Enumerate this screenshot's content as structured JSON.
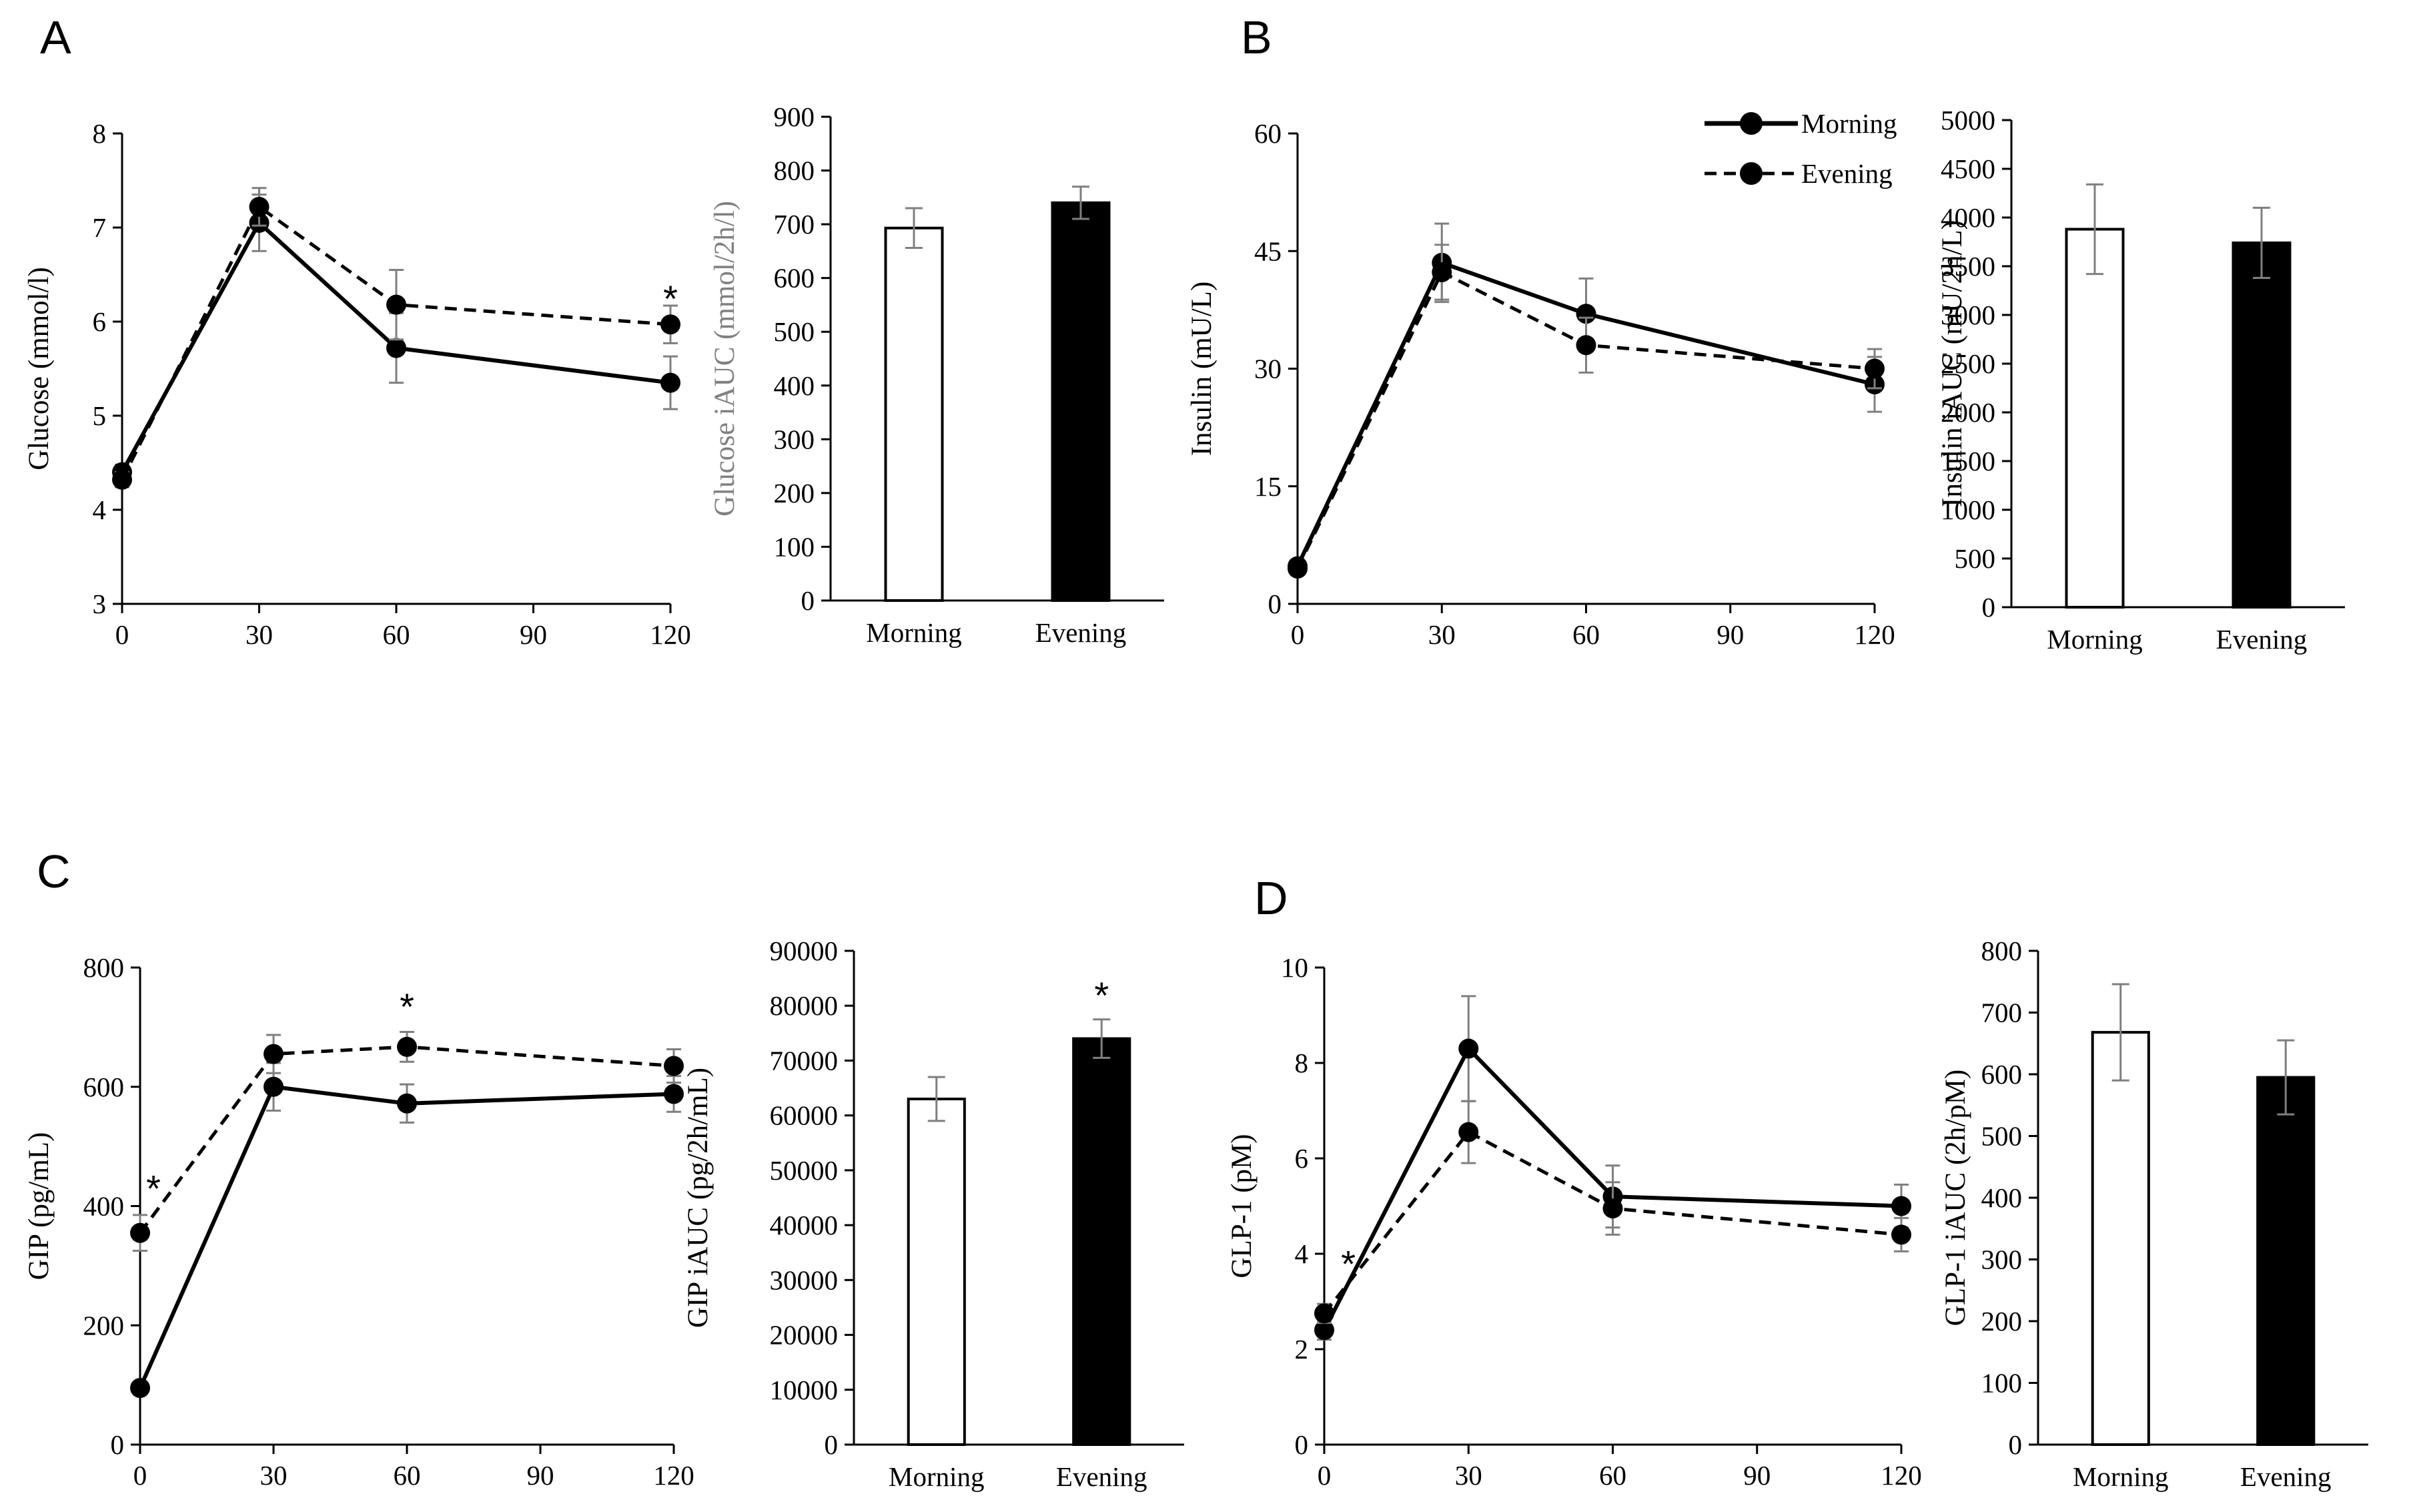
{
  "figure": {
    "panel_labels": [
      "A",
      "B",
      "C",
      "D"
    ],
    "legend": {
      "morning_label": "Morning",
      "evening_label": "Evening"
    }
  },
  "chart_data": [
    {
      "id": "glucose-line",
      "panel": "A",
      "type": "line",
      "ylabel": "Glucose (mmol/l)",
      "xlabel": "",
      "x": [
        0,
        30,
        60,
        90,
        120
      ],
      "xticks": [
        0,
        30,
        60,
        90,
        120
      ],
      "ylim": [
        3,
        8
      ],
      "yticks": [
        3,
        4,
        5,
        6,
        7,
        8
      ],
      "series": [
        {
          "name": "Morning",
          "style": "solid",
          "x": [
            0,
            30,
            60,
            120
          ],
          "values": [
            4.4,
            7.05,
            5.72,
            5.35
          ],
          "errors": [
            0.08,
            0.3,
            0.37,
            0.28
          ]
        },
        {
          "name": "Evening",
          "style": "dashed",
          "x": [
            0,
            30,
            60,
            120
          ],
          "values": [
            4.32,
            7.22,
            6.18,
            5.97
          ],
          "errors": [
            0.08,
            0.2,
            0.37,
            0.2
          ]
        }
      ],
      "annotations": [
        {
          "x": 120,
          "y": 6.25,
          "text": "*"
        }
      ]
    },
    {
      "id": "glucose-bar",
      "panel": "A",
      "type": "bar",
      "ylabel": "Glucose iAUC (mmol/2h/l)",
      "categories": [
        "Morning",
        "Evening"
      ],
      "values": [
        693,
        740
      ],
      "errors": [
        37,
        30
      ],
      "fills": [
        "#ffffff",
        "#000000"
      ],
      "ylim": [
        0,
        900
      ],
      "yticks": [
        0,
        100,
        200,
        300,
        400,
        500,
        600,
        700,
        800,
        900
      ],
      "annotations": []
    },
    {
      "id": "insulin-line",
      "panel": "B",
      "type": "line",
      "ylabel": "Insulin  (mU/L)",
      "x": [
        0,
        30,
        60,
        90,
        120
      ],
      "xticks": [
        0,
        30,
        60,
        90,
        120
      ],
      "ylim": [
        0,
        60
      ],
      "yticks": [
        0,
        15,
        30,
        45,
        60
      ],
      "series": [
        {
          "name": "Morning",
          "style": "solid",
          "x": [
            0,
            30,
            60,
            120
          ],
          "values": [
            4.8,
            43.5,
            37,
            28
          ],
          "errors": [
            0.5,
            5,
            4.5,
            3.5
          ]
        },
        {
          "name": "Evening",
          "style": "dashed",
          "x": [
            0,
            30,
            60,
            120
          ],
          "values": [
            4.5,
            42.3,
            33,
            30
          ],
          "errors": [
            0.5,
            3.5,
            3.5,
            2.5
          ]
        }
      ],
      "annotations": []
    },
    {
      "id": "insulin-bar",
      "panel": "B",
      "type": "bar",
      "ylabel": "Insulin iAUC (mU/2h/L)",
      "categories": [
        "Morning",
        "Evening"
      ],
      "values": [
        3880,
        3740
      ],
      "errors": [
        460,
        360
      ],
      "fills": [
        "#ffffff",
        "#000000"
      ],
      "ylim": [
        0,
        5000
      ],
      "yticks": [
        0,
        500,
        1000,
        1500,
        2000,
        2500,
        3000,
        3500,
        4000,
        4500,
        5000
      ],
      "annotations": []
    },
    {
      "id": "gip-line",
      "panel": "C",
      "type": "line",
      "ylabel": "GIP (pg/mL)",
      "x": [
        0,
        30,
        60,
        90,
        120
      ],
      "xticks": [
        0,
        30,
        60,
        90,
        120
      ],
      "ylim": [
        0,
        800
      ],
      "yticks": [
        0,
        200,
        400,
        600,
        800
      ],
      "series": [
        {
          "name": "Morning",
          "style": "solid",
          "x": [
            0,
            30,
            60,
            120
          ],
          "values": [
            95,
            600,
            572,
            588
          ],
          "errors": [
            8,
            40,
            32,
            30
          ]
        },
        {
          "name": "Evening",
          "style": "dashed",
          "x": [
            0,
            30,
            60,
            120
          ],
          "values": [
            355,
            655,
            667,
            635
          ],
          "errors": [
            30,
            32,
            25,
            28
          ]
        }
      ],
      "annotations": [
        {
          "x": 3,
          "y": 430,
          "text": "*"
        },
        {
          "x": 60,
          "y": 735,
          "text": "*"
        }
      ]
    },
    {
      "id": "gip-bar",
      "panel": "C",
      "type": "bar",
      "ylabel": "GIP iAUC (pg/2h/mL)",
      "categories": [
        "Morning",
        "Evening"
      ],
      "values": [
        63000,
        74000
      ],
      "errors": [
        4000,
        3500
      ],
      "fills": [
        "#ffffff",
        "#000000"
      ],
      "ylim": [
        0,
        90000
      ],
      "yticks": [
        0,
        10000,
        20000,
        30000,
        40000,
        50000,
        60000,
        70000,
        80000,
        90000
      ],
      "annotations": [
        {
          "category": "Evening",
          "y": 82000,
          "text": "*"
        }
      ]
    },
    {
      "id": "glp1-line",
      "panel": "D",
      "type": "line",
      "ylabel": "GLP-1 (pM)",
      "x": [
        0,
        30,
        60,
        90,
        120
      ],
      "xticks": [
        0,
        30,
        60,
        90,
        120
      ],
      "ylim": [
        0,
        10
      ],
      "yticks": [
        0,
        2,
        4,
        6,
        8,
        10
      ],
      "series": [
        {
          "name": "Morning",
          "style": "solid",
          "x": [
            0,
            30,
            60,
            120
          ],
          "values": [
            2.4,
            8.3,
            5.2,
            5.0
          ],
          "errors": [
            0.2,
            1.1,
            0.65,
            0.45
          ]
        },
        {
          "name": "Evening",
          "style": "dashed",
          "x": [
            0,
            30,
            60,
            120
          ],
          "values": [
            2.75,
            6.55,
            4.95,
            4.4
          ],
          "errors": [
            0.2,
            0.65,
            0.55,
            0.35
          ]
        }
      ],
      "annotations": [
        {
          "x": 5,
          "y": 3.8,
          "text": "*"
        }
      ]
    },
    {
      "id": "glp1-bar",
      "panel": "D",
      "type": "bar",
      "ylabel": "GLP-1 iAUC (2h/pM)",
      "categories": [
        "Morning",
        "Evening"
      ],
      "values": [
        668,
        595
      ],
      "errors": [
        78,
        60
      ],
      "fills": [
        "#ffffff",
        "#000000"
      ],
      "ylim": [
        0,
        800
      ],
      "yticks": [
        0,
        100,
        200,
        300,
        400,
        500,
        600,
        700,
        800
      ],
      "annotations": []
    }
  ]
}
